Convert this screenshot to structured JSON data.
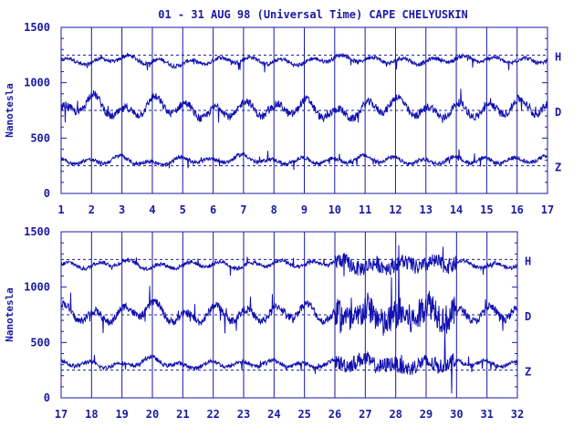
{
  "title": "01 - 31 AUG 98 (Universal Time) CAPE CHELYUSKIN",
  "colors": {
    "ink": "#1a1aa6",
    "trace": "#1010b0",
    "background": "#ffffff"
  },
  "chart_data": [
    {
      "type": "line",
      "ylabel": "Nanotesla",
      "xlabel": "",
      "xlim": [
        1,
        17
      ],
      "ylim": [
        0,
        1500
      ],
      "x_ticks": [
        "1",
        "2",
        "3",
        "4",
        "5",
        "6",
        "7",
        "8",
        "9",
        "10",
        "11",
        "12",
        "13",
        "14",
        "15",
        "16",
        "17"
      ],
      "y_ticks": [
        "0",
        "500",
        "1000",
        "1500"
      ],
      "grid": "vertical-daily",
      "series": [
        {
          "name": "H",
          "baseline": 1250,
          "values": [
            1200,
            1180,
            1230,
            1190,
            1170,
            1200,
            1210,
            1190,
            1180,
            1230,
            1210,
            1200,
            1190,
            1220,
            1210,
            1200,
            1200
          ]
        },
        {
          "name": "D",
          "baseline": 750,
          "values": [
            720,
            850,
            700,
            820,
            760,
            720,
            780,
            740,
            800,
            700,
            760,
            820,
            720,
            760,
            740,
            800,
            760
          ]
        },
        {
          "name": "Z",
          "baseline": 250,
          "values": [
            300,
            280,
            320,
            260,
            310,
            290,
            330,
            280,
            300,
            290,
            320,
            300,
            280,
            310,
            290,
            300,
            310
          ]
        }
      ]
    },
    {
      "type": "line",
      "ylabel": "Nanotesla",
      "xlabel": "",
      "xlim": [
        17,
        32
      ],
      "ylim": [
        0,
        1500
      ],
      "x_ticks": [
        "17",
        "18",
        "19",
        "20",
        "21",
        "22",
        "23",
        "24",
        "25",
        "26",
        "27",
        "28",
        "29",
        "30",
        "31",
        "32"
      ],
      "y_ticks": [
        "0",
        "500",
        "1000",
        "1500"
      ],
      "grid": "vertical-daily",
      "series": [
        {
          "name": "H",
          "baseline": 1250,
          "values": [
            1200,
            1190,
            1230,
            1180,
            1200,
            1210,
            1190,
            1220,
            1200,
            1230,
            1180,
            1210,
            1200,
            1220,
            1190,
            1200
          ]
        },
        {
          "name": "D",
          "baseline": 750,
          "values": [
            800,
            720,
            760,
            820,
            700,
            780,
            740,
            760,
            800,
            720,
            760,
            700,
            800,
            740,
            760,
            780
          ]
        },
        {
          "name": "Z",
          "baseline": 250,
          "values": [
            320,
            300,
            290,
            350,
            280,
            310,
            300,
            320,
            290,
            310,
            330,
            280,
            300,
            320,
            310,
            300
          ]
        }
      ]
    }
  ]
}
